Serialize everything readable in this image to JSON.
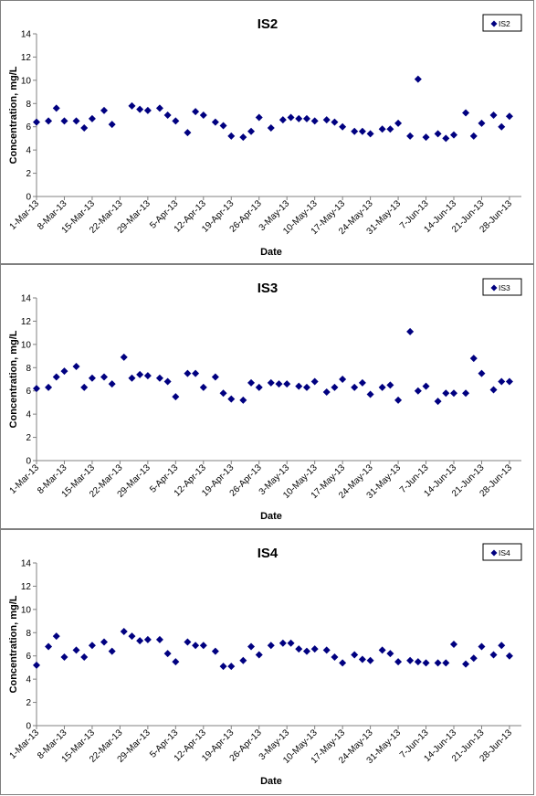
{
  "colors": {
    "marker": "#000080",
    "axis": "#808080",
    "text": "#000000",
    "background": "#ffffff"
  },
  "chart_data": [
    {
      "type": "scatter",
      "title": "IS2",
      "xlabel": "Date",
      "ylabel": "Concentration, mg/L",
      "legend": "top-right",
      "grid": false,
      "ylim": [
        0,
        14
      ],
      "yticks": [
        "0",
        "2",
        "4",
        "6",
        "8",
        "10",
        "12",
        "14"
      ],
      "xlim": [
        "2013-03-01",
        "2013-07-01"
      ],
      "xticks": [
        {
          "date": "2013-03-01",
          "label": "1-Mar-13"
        },
        {
          "date": "2013-03-08",
          "label": "8-Mar-13"
        },
        {
          "date": "2013-03-15",
          "label": "15-Mar-13"
        },
        {
          "date": "2013-03-22",
          "label": "22-Mar-13"
        },
        {
          "date": "2013-03-29",
          "label": "29-Mar-13"
        },
        {
          "date": "2013-04-05",
          "label": "5-Apr-13"
        },
        {
          "date": "2013-04-12",
          "label": "12-Apr-13"
        },
        {
          "date": "2013-04-19",
          "label": "19-Apr-13"
        },
        {
          "date": "2013-04-26",
          "label": "26-Apr-13"
        },
        {
          "date": "2013-05-03",
          "label": "3-May-13"
        },
        {
          "date": "2013-05-10",
          "label": "10-May-13"
        },
        {
          "date": "2013-05-17",
          "label": "17-May-13"
        },
        {
          "date": "2013-05-24",
          "label": "24-May-13"
        },
        {
          "date": "2013-05-31",
          "label": "31-May-13"
        },
        {
          "date": "2013-06-07",
          "label": "7-Jun-13"
        },
        {
          "date": "2013-06-14",
          "label": "14-Jun-13"
        },
        {
          "date": "2013-06-21",
          "label": "21-Jun-13"
        },
        {
          "date": "2013-06-28",
          "label": "28-Jun-13"
        }
      ],
      "series": [
        {
          "name": "IS2",
          "x": [
            "2013-03-01",
            "2013-03-04",
            "2013-03-06",
            "2013-03-08",
            "2013-03-11",
            "2013-03-13",
            "2013-03-15",
            "2013-03-18",
            "2013-03-20",
            "2013-03-25",
            "2013-03-27",
            "2013-03-29",
            "2013-04-01",
            "2013-04-03",
            "2013-04-05",
            "2013-04-08",
            "2013-04-10",
            "2013-04-12",
            "2013-04-15",
            "2013-04-17",
            "2013-04-19",
            "2013-04-22",
            "2013-04-24",
            "2013-04-26",
            "2013-04-29",
            "2013-05-02",
            "2013-05-04",
            "2013-05-06",
            "2013-05-08",
            "2013-05-10",
            "2013-05-13",
            "2013-05-15",
            "2013-05-17",
            "2013-05-20",
            "2013-05-22",
            "2013-05-24",
            "2013-05-27",
            "2013-05-29",
            "2013-05-31",
            "2013-06-03",
            "2013-06-05",
            "2013-06-07",
            "2013-06-10",
            "2013-06-12",
            "2013-06-14",
            "2013-06-17",
            "2013-06-19",
            "2013-06-21",
            "2013-06-24",
            "2013-06-26",
            "2013-06-28"
          ],
          "y": [
            6.4,
            6.5,
            7.6,
            6.5,
            6.5,
            5.9,
            6.7,
            7.4,
            6.2,
            7.8,
            7.5,
            7.4,
            7.6,
            7.0,
            6.5,
            5.5,
            7.3,
            7.0,
            6.4,
            6.1,
            5.2,
            5.1,
            5.6,
            6.8,
            5.9,
            6.6,
            6.8,
            6.7,
            6.7,
            6.5,
            6.6,
            6.4,
            6.0,
            5.6,
            5.6,
            5.4,
            5.8,
            5.8,
            6.3,
            5.2,
            10.1,
            5.1,
            5.4,
            5.0,
            5.3,
            7.2,
            5.2,
            6.3,
            7.0,
            6.0,
            6.9
          ]
        }
      ]
    },
    {
      "type": "scatter",
      "title": "IS3",
      "xlabel": "Date",
      "ylabel": "Concentration, mg/L",
      "legend": "top-right",
      "grid": false,
      "ylim": [
        0,
        14
      ],
      "yticks": [
        "0",
        "2",
        "4",
        "6",
        "8",
        "10",
        "12",
        "14"
      ],
      "xlim": [
        "2013-03-01",
        "2013-07-01"
      ],
      "xticks": [
        {
          "date": "2013-03-01",
          "label": "1-Mar-13"
        },
        {
          "date": "2013-03-08",
          "label": "8-Mar-13"
        },
        {
          "date": "2013-03-15",
          "label": "15-Mar-13"
        },
        {
          "date": "2013-03-22",
          "label": "22-Mar-13"
        },
        {
          "date": "2013-03-29",
          "label": "29-Mar-13"
        },
        {
          "date": "2013-04-05",
          "label": "5-Apr-13"
        },
        {
          "date": "2013-04-12",
          "label": "12-Apr-13"
        },
        {
          "date": "2013-04-19",
          "label": "19-Apr-13"
        },
        {
          "date": "2013-04-26",
          "label": "26-Apr-13"
        },
        {
          "date": "2013-05-03",
          "label": "3-May-13"
        },
        {
          "date": "2013-05-10",
          "label": "10-May-13"
        },
        {
          "date": "2013-05-17",
          "label": "17-May-13"
        },
        {
          "date": "2013-05-24",
          "label": "24-May-13"
        },
        {
          "date": "2013-05-31",
          "label": "31-May-13"
        },
        {
          "date": "2013-06-07",
          "label": "7-Jun-13"
        },
        {
          "date": "2013-06-14",
          "label": "14-Jun-13"
        },
        {
          "date": "2013-06-21",
          "label": "21-Jun-13"
        },
        {
          "date": "2013-06-28",
          "label": "28-Jun-13"
        }
      ],
      "series": [
        {
          "name": "IS3",
          "x": [
            "2013-03-01",
            "2013-03-04",
            "2013-03-06",
            "2013-03-08",
            "2013-03-11",
            "2013-03-13",
            "2013-03-15",
            "2013-03-18",
            "2013-03-20",
            "2013-03-23",
            "2013-03-25",
            "2013-03-27",
            "2013-03-29",
            "2013-04-01",
            "2013-04-03",
            "2013-04-05",
            "2013-04-08",
            "2013-04-10",
            "2013-04-12",
            "2013-04-15",
            "2013-04-17",
            "2013-04-19",
            "2013-04-22",
            "2013-04-24",
            "2013-04-26",
            "2013-04-29",
            "2013-05-01",
            "2013-05-03",
            "2013-05-06",
            "2013-05-08",
            "2013-05-10",
            "2013-05-13",
            "2013-05-15",
            "2013-05-17",
            "2013-05-20",
            "2013-05-22",
            "2013-05-24",
            "2013-05-27",
            "2013-05-29",
            "2013-05-31",
            "2013-06-03",
            "2013-06-05",
            "2013-06-07",
            "2013-06-10",
            "2013-06-12",
            "2013-06-14",
            "2013-06-17",
            "2013-06-19",
            "2013-06-21",
            "2013-06-24",
            "2013-06-26",
            "2013-06-28"
          ],
          "y": [
            6.2,
            6.3,
            7.2,
            7.7,
            8.1,
            6.3,
            7.1,
            7.2,
            6.6,
            8.9,
            7.1,
            7.4,
            7.3,
            7.1,
            6.8,
            5.5,
            7.5,
            7.5,
            6.3,
            7.2,
            5.8,
            5.3,
            5.2,
            6.7,
            6.3,
            6.7,
            6.6,
            6.6,
            6.4,
            6.3,
            6.8,
            5.9,
            6.3,
            7.0,
            6.3,
            6.7,
            5.7,
            6.3,
            6.5,
            5.2,
            11.1,
            6.0,
            6.4,
            5.1,
            5.8,
            5.8,
            5.8,
            8.8,
            7.5,
            6.1,
            6.8,
            6.8
          ]
        }
      ]
    },
    {
      "type": "scatter",
      "title": "IS4",
      "xlabel": "Date",
      "ylabel": "Concentration, mg/L",
      "legend": "top-right",
      "grid": false,
      "ylim": [
        0,
        14
      ],
      "yticks": [
        "0",
        "2",
        "4",
        "6",
        "8",
        "10",
        "12",
        "14"
      ],
      "xlim": [
        "2013-03-01",
        "2013-07-01"
      ],
      "xticks": [
        {
          "date": "2013-03-01",
          "label": "1-Mar-13"
        },
        {
          "date": "2013-03-08",
          "label": "8-Mar-13"
        },
        {
          "date": "2013-03-15",
          "label": "15-Mar-13"
        },
        {
          "date": "2013-03-22",
          "label": "22-Mar-13"
        },
        {
          "date": "2013-03-29",
          "label": "29-Mar-13"
        },
        {
          "date": "2013-04-05",
          "label": "5-Apr-13"
        },
        {
          "date": "2013-04-12",
          "label": "12-Apr-13"
        },
        {
          "date": "2013-04-19",
          "label": "19-Apr-13"
        },
        {
          "date": "2013-04-26",
          "label": "26-Apr-13"
        },
        {
          "date": "2013-05-03",
          "label": "3-May-13"
        },
        {
          "date": "2013-05-10",
          "label": "10-May-13"
        },
        {
          "date": "2013-05-17",
          "label": "17-May-13"
        },
        {
          "date": "2013-05-24",
          "label": "24-May-13"
        },
        {
          "date": "2013-05-31",
          "label": "31-May-13"
        },
        {
          "date": "2013-06-07",
          "label": "7-Jun-13"
        },
        {
          "date": "2013-06-14",
          "label": "14-Jun-13"
        },
        {
          "date": "2013-06-21",
          "label": "21-Jun-13"
        },
        {
          "date": "2013-06-28",
          "label": "28-Jun-13"
        }
      ],
      "series": [
        {
          "name": "IS4",
          "x": [
            "2013-03-01",
            "2013-03-04",
            "2013-03-06",
            "2013-03-08",
            "2013-03-11",
            "2013-03-13",
            "2013-03-15",
            "2013-03-18",
            "2013-03-20",
            "2013-03-23",
            "2013-03-25",
            "2013-03-27",
            "2013-03-29",
            "2013-04-01",
            "2013-04-03",
            "2013-04-05",
            "2013-04-08",
            "2013-04-10",
            "2013-04-12",
            "2013-04-15",
            "2013-04-17",
            "2013-04-19",
            "2013-04-22",
            "2013-04-24",
            "2013-04-26",
            "2013-04-29",
            "2013-05-02",
            "2013-05-04",
            "2013-05-06",
            "2013-05-08",
            "2013-05-10",
            "2013-05-13",
            "2013-05-15",
            "2013-05-17",
            "2013-05-20",
            "2013-05-22",
            "2013-05-24",
            "2013-05-27",
            "2013-05-29",
            "2013-05-31",
            "2013-06-03",
            "2013-06-05",
            "2013-06-07",
            "2013-06-10",
            "2013-06-12",
            "2013-06-14",
            "2013-06-17",
            "2013-06-19",
            "2013-06-21",
            "2013-06-24",
            "2013-06-26",
            "2013-06-28"
          ],
          "y": [
            5.2,
            6.8,
            7.7,
            5.9,
            6.5,
            5.9,
            6.9,
            7.2,
            6.4,
            8.1,
            7.7,
            7.3,
            7.4,
            7.4,
            6.2,
            5.5,
            7.2,
            6.9,
            6.9,
            6.4,
            5.1,
            5.1,
            5.6,
            6.8,
            6.1,
            6.9,
            7.1,
            7.1,
            6.6,
            6.4,
            6.6,
            6.5,
            5.9,
            5.4,
            6.1,
            5.7,
            5.6,
            6.5,
            6.2,
            5.5,
            5.6,
            5.5,
            5.4,
            5.4,
            5.4,
            7.0,
            5.3,
            5.8,
            6.8,
            6.1,
            6.9,
            6.0
          ]
        }
      ]
    }
  ]
}
